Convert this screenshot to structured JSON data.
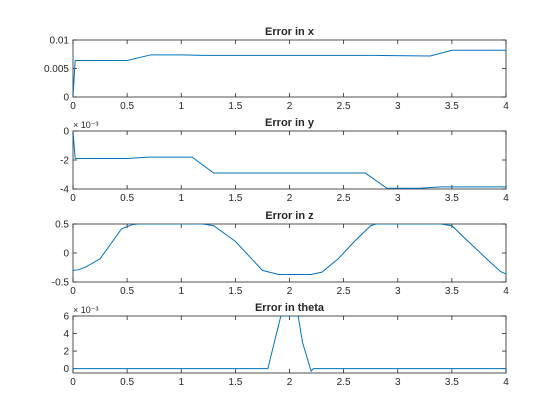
{
  "chart_data": [
    {
      "type": "line",
      "title": "Error in x",
      "xlabel": "",
      "ylabel": "",
      "xlim": [
        0,
        4
      ],
      "ylim": [
        0,
        0.01
      ],
      "xticks": [
        0,
        0.5,
        1,
        1.5,
        2,
        2.5,
        3,
        3.5,
        4
      ],
      "xtick_labels": [
        "0",
        "0.5",
        "1",
        "1.5",
        "2",
        "2.5",
        "3",
        "3.5",
        "4"
      ],
      "yticks": [
        0,
        0.005,
        0.01
      ],
      "ytick_labels": [
        "0",
        "0.005",
        "0.01"
      ],
      "exponent_label": "",
      "line_color": "#0072BD",
      "grid": false,
      "series": [
        {
          "x": [
            0,
            0.02,
            0.5,
            0.72,
            1.0,
            1.2,
            2.0,
            2.8,
            3.3,
            3.5,
            4.0
          ],
          "y": [
            0,
            0.0064,
            0.0064,
            0.0074,
            0.0074,
            0.0073,
            0.0073,
            0.0073,
            0.0072,
            0.0082,
            0.0082
          ]
        }
      ]
    },
    {
      "type": "line",
      "title": "Error in y",
      "xlabel": "",
      "ylabel": "",
      "xlim": [
        0,
        4
      ],
      "ylim": [
        -4,
        0
      ],
      "xticks": [
        0,
        0.5,
        1,
        1.5,
        2,
        2.5,
        3,
        3.5,
        4
      ],
      "xtick_labels": [
        "0",
        "0.5",
        "1",
        "1.5",
        "2",
        "2.5",
        "3",
        "3.5",
        "4"
      ],
      "yticks": [
        -4,
        -2,
        0
      ],
      "ytick_labels": [
        "-4",
        "-2",
        "0"
      ],
      "exponent_label": "× 10⁻³",
      "line_color": "#0072BD",
      "grid": false,
      "series": [
        {
          "x": [
            0,
            0.02,
            0.5,
            0.7,
            1.1,
            1.3,
            2.0,
            2.7,
            2.9,
            3.2,
            3.4,
            4.0
          ],
          "y": [
            0,
            -1.9,
            -1.9,
            -1.8,
            -1.8,
            -2.9,
            -2.9,
            -2.9,
            -3.95,
            -3.95,
            -3.85,
            -3.85
          ]
        }
      ]
    },
    {
      "type": "line",
      "title": "Error in z",
      "xlabel": "",
      "ylabel": "",
      "xlim": [
        0,
        4
      ],
      "ylim": [
        -0.5,
        0.5
      ],
      "xticks": [
        0,
        0.5,
        1,
        1.5,
        2,
        2.5,
        3,
        3.5,
        4
      ],
      "xtick_labels": [
        "0",
        "0.5",
        "1",
        "1.5",
        "2",
        "2.5",
        "3",
        "3.5",
        "4"
      ],
      "yticks": [
        -0.5,
        0,
        0.5
      ],
      "ytick_labels": [
        "-0.5",
        "0",
        "0.5"
      ],
      "exponent_label": "",
      "line_color": "#0072BD",
      "grid": false,
      "series": [
        {
          "x": [
            0,
            0.05,
            0.12,
            0.25,
            0.45,
            0.55,
            0.6,
            1.2,
            1.3,
            1.5,
            1.65,
            1.75,
            1.9,
            2.2,
            2.3,
            2.45,
            2.6,
            2.75,
            2.8,
            3.4,
            3.5,
            3.65,
            3.85,
            3.95,
            4.0
          ],
          "y": [
            -0.3,
            -0.29,
            -0.24,
            -0.1,
            0.42,
            0.49,
            0.5,
            0.5,
            0.47,
            0.2,
            -0.1,
            -0.3,
            -0.37,
            -0.37,
            -0.33,
            -0.1,
            0.2,
            0.47,
            0.5,
            0.5,
            0.47,
            0.2,
            -0.15,
            -0.32,
            -0.36
          ]
        }
      ]
    },
    {
      "type": "line",
      "title": "Error in theta",
      "xlabel": "",
      "ylabel": "",
      "xlim": [
        0,
        4
      ],
      "ylim": [
        -0.5,
        6
      ],
      "xticks": [
        0,
        0.5,
        1,
        1.5,
        2,
        2.5,
        3,
        3.5,
        4
      ],
      "xtick_labels": [
        "0",
        "0.5",
        "1",
        "1.5",
        "2",
        "2.5",
        "3",
        "3.5",
        "4"
      ],
      "yticks": [
        0,
        2,
        4,
        6
      ],
      "ytick_labels": [
        "0",
        "2",
        "4",
        "6"
      ],
      "exponent_label": "× 10⁻³",
      "line_color": "#0072BD",
      "grid": false,
      "series": [
        {
          "x": [
            0,
            1.8,
            1.85,
            1.92,
            2.08,
            2.12,
            2.2,
            2.22,
            4.0
          ],
          "y": [
            0,
            0,
            2.5,
            6.0,
            6.0,
            3.0,
            -0.3,
            0,
            0
          ]
        }
      ]
    }
  ]
}
